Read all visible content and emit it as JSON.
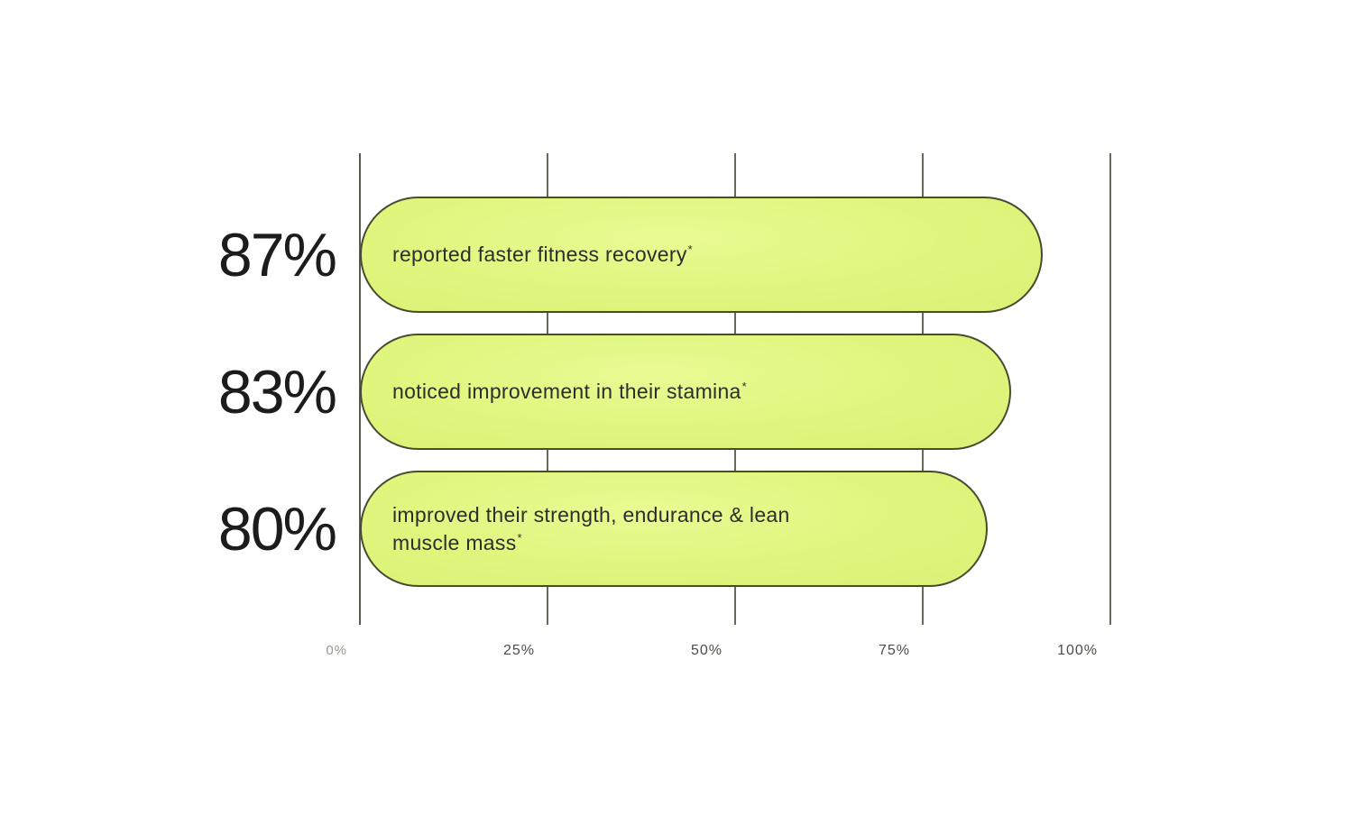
{
  "page": {
    "background": "#ffffff"
  },
  "colors": {
    "bar_fill": "#def67d",
    "bar_border": "#4a4a33",
    "axis_line": "#6a6a59",
    "value_label": "#1c1c1c",
    "bar_text": "#2d2d2d",
    "tick_label": "#4d4d45",
    "tick_label_zero": "#97978a"
  },
  "chart_data": {
    "type": "bar",
    "orientation": "horizontal",
    "title": "",
    "xlim": [
      0,
      100
    ],
    "grid": true,
    "legend": false,
    "x_tick_labels": [
      "0%",
      "25%",
      "50%",
      "75%",
      "100%"
    ],
    "categories": [
      "reported faster fitness recovery",
      "noticed improvement in their stamina",
      "improved their strength, endurance & lean muscle mass"
    ],
    "values": [
      87,
      83,
      80
    ],
    "series": [
      {
        "value": 87,
        "value_label": "87%",
        "label": "reported faster fitness recovery",
        "footnote_marker": "*"
      },
      {
        "value": 83,
        "value_label": "83%",
        "label": "noticed improvement in their stamina",
        "footnote_marker": "*"
      },
      {
        "value": 80,
        "value_label": "80%",
        "label": "improved their strength, endurance & lean muscle mass",
        "footnote_marker": "*"
      }
    ]
  }
}
